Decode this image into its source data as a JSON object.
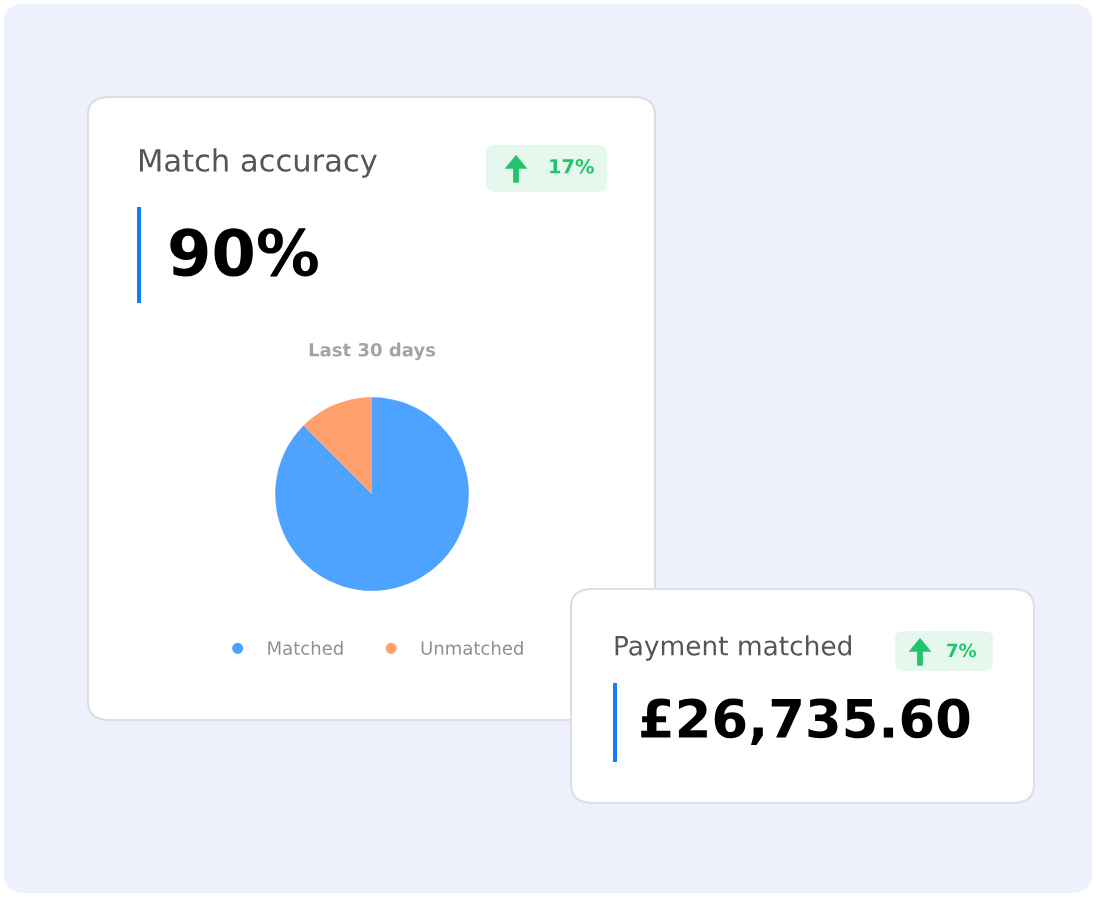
{
  "chart_data": [
    {
      "type": "other",
      "title": "Match accuracy",
      "annotations": [
        "17%",
        "90%"
      ]
    },
    {
      "type": "pie",
      "title": "Last 30 days",
      "categories": [
        "Matched",
        "Unmatched"
      ],
      "values": [
        87.5,
        12.5
      ],
      "colors": [
        "#4da3ff",
        "#ffa06e"
      ],
      "legend": "bottom"
    },
    {
      "type": "other",
      "title": "Payment matched",
      "annotations": [
        "7%",
        "£26,735.60"
      ]
    }
  ]
}
